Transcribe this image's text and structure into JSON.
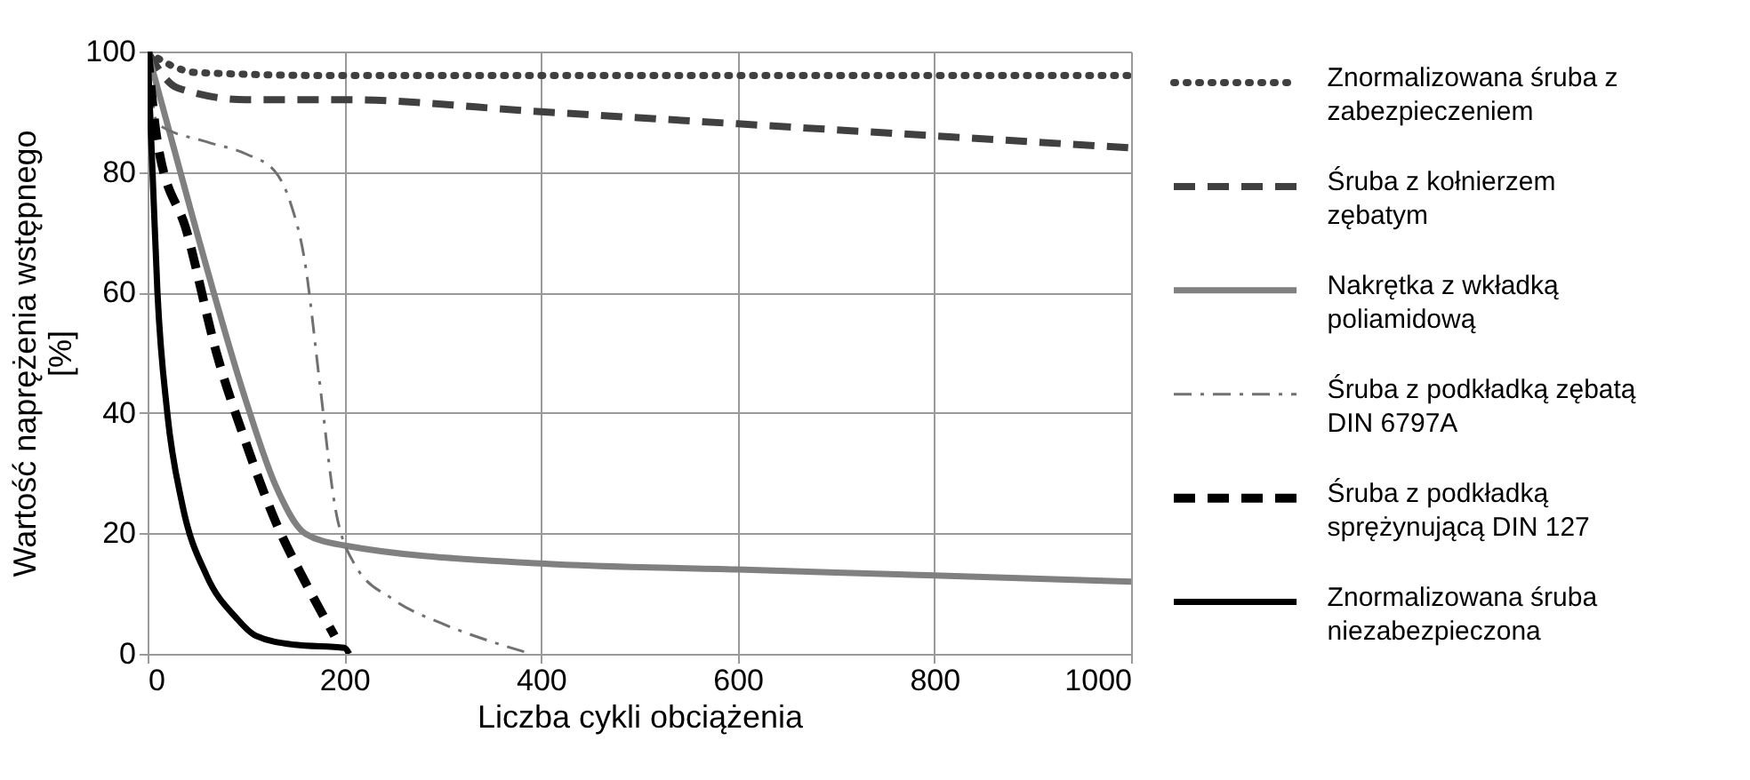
{
  "chart_data": {
    "type": "line",
    "xlabel": "Liczba cykli obciążenia",
    "ylabel": "Wartość naprężenia wstępnego\n[%]",
    "xlim": [
      0,
      1000
    ],
    "xticks": [
      0,
      200,
      400,
      600,
      800,
      1000
    ],
    "ylim": [
      0,
      100
    ],
    "yticks": [
      0,
      20,
      40,
      60,
      80,
      100
    ],
    "grid": true,
    "legend": "right",
    "series": [
      {
        "name": "Znormalizowana śruba z\nzabezpieczeniem",
        "color": "#404040",
        "line_style": "dotted",
        "x": [
          0,
          20,
          50,
          200,
          1000
        ],
        "values": [
          100,
          98,
          96.5,
          96,
          96
        ]
      },
      {
        "name": "Śruba z kołnierzem\nzębatym",
        "color": "#404040",
        "line_style": "dashed",
        "x": [
          0,
          30,
          100,
          200,
          400,
          600,
          800,
          1000
        ],
        "values": [
          100,
          94,
          92,
          92,
          90,
          88,
          86,
          84
        ]
      },
      {
        "name": "Nakrętka z wkładką\npoliamidową",
        "color": "#808080",
        "line_style": "solid",
        "x": [
          0,
          20,
          50,
          100,
          130,
          160,
          200,
          400,
          600,
          800,
          1000
        ],
        "values": [
          100,
          88,
          70,
          42,
          28,
          20,
          18,
          15,
          14,
          13,
          12
        ]
      },
      {
        "name": "Śruba z podkładką zębatą\nDIN 6797A",
        "color": "#707070",
        "line_style": "dashdot",
        "x": [
          0,
          10,
          60,
          100,
          130,
          145,
          160,
          175,
          190,
          210,
          250,
          300,
          350,
          390
        ],
        "values": [
          100,
          88,
          85,
          83,
          80,
          75,
          65,
          45,
          25,
          15,
          9,
          5,
          2,
          0
        ]
      },
      {
        "name": "Śruba z podkładką\nsprężynującą DIN 127",
        "color": "#000000",
        "line_style": "dashed",
        "x": [
          0,
          10,
          40,
          70,
          100,
          130,
          160,
          190
        ],
        "values": [
          100,
          85,
          70,
          50,
          35,
          22,
          12,
          3
        ]
      },
      {
        "name": "Znormalizowana śruba\nniezabezpieczona",
        "color": "#000000",
        "line_style": "solid",
        "x": [
          0,
          5,
          10,
          20,
          35,
          60,
          90,
          110,
          150,
          200,
          205
        ],
        "values": [
          100,
          80,
          60,
          40,
          25,
          13,
          6,
          3,
          1.5,
          1,
          0
        ]
      }
    ]
  }
}
